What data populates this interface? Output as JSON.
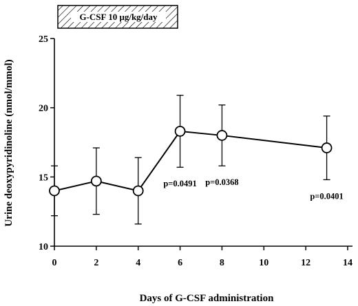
{
  "chart_data": {
    "type": "line",
    "title": "",
    "xlabel": "Days of G-CSF administration",
    "ylabel": "Urine deoxypyridinoline (nmol/mmol)",
    "xlim": [
      0,
      14
    ],
    "ylim": [
      10,
      25
    ],
    "x_ticks": [
      0,
      2,
      4,
      6,
      8,
      10,
      12,
      14
    ],
    "y_ticks": [
      10,
      15,
      20,
      25
    ],
    "grid": false,
    "series": [
      {
        "x": [
          0,
          2,
          4,
          6,
          8,
          13
        ],
        "y": [
          14.0,
          14.7,
          14.0,
          18.3,
          18.0,
          17.1
        ],
        "error": [
          1.8,
          2.4,
          2.4,
          2.6,
          2.2,
          2.3
        ],
        "marker": "open-circle",
        "color": "#000000"
      }
    ],
    "annotations": [
      {
        "text": "p=0.0491",
        "x": 6
      },
      {
        "text": "p=0.0368",
        "x": 8
      },
      {
        "text": "p=0.0401",
        "x": 13
      }
    ],
    "banner": {
      "text": "G-CSF 10 μg/kg/day",
      "pattern": "hatched"
    }
  }
}
